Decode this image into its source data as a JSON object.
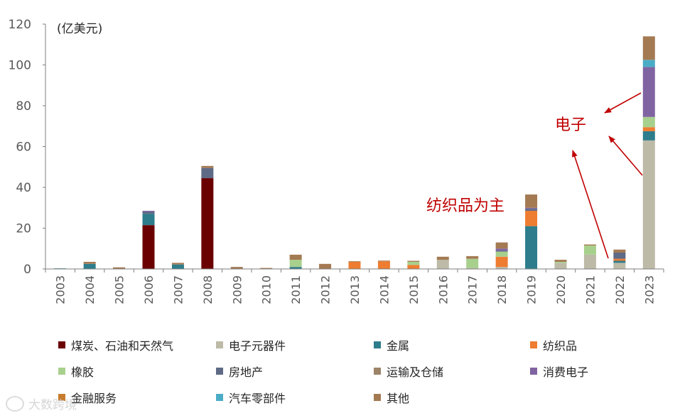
{
  "chart_data": {
    "type": "bar",
    "stacked": true,
    "unit_label": "(亿美元)",
    "ylim": [
      0,
      120
    ],
    "yticks": [
      0,
      20,
      40,
      60,
      80,
      100,
      120
    ],
    "grid": false,
    "legend_position": "bottom",
    "categories": [
      "2003",
      "2004",
      "2005",
      "2006",
      "2007",
      "2008",
      "2009",
      "2010",
      "2011",
      "2012",
      "2013",
      "2014",
      "2015",
      "2016",
      "2017",
      "2018",
      "2019",
      "2020",
      "2021",
      "2022",
      "2023"
    ],
    "series": [
      {
        "name": "煤炭、石油和天然气",
        "color": "#6b0000",
        "values": [
          0,
          0,
          0,
          21.5,
          0,
          44.5,
          0,
          0,
          0,
          0,
          0,
          0,
          0,
          0,
          0,
          0,
          0,
          0,
          0,
          0,
          0
        ]
      },
      {
        "name": "电子元器件",
        "color": "#bdbaa7",
        "values": [
          0,
          0,
          0,
          0,
          0,
          0,
          0,
          0,
          0,
          0,
          0,
          0,
          0,
          4.5,
          0.5,
          1,
          0,
          3,
          7,
          3,
          63
        ]
      },
      {
        "name": "金属",
        "color": "#2e7d8c",
        "values": [
          0.3,
          2.5,
          0,
          5.5,
          2.2,
          0,
          0,
          0,
          1,
          0,
          0,
          0,
          0,
          0,
          0,
          0,
          21,
          0,
          0,
          1,
          4.5
        ]
      },
      {
        "name": "纺织品",
        "color": "#ee7d31",
        "values": [
          0,
          0,
          0,
          0,
          0,
          0,
          0,
          0,
          0,
          0,
          3.5,
          3.8,
          2,
          0,
          0,
          5,
          7.5,
          0,
          0,
          1,
          2
        ]
      },
      {
        "name": "橡胶",
        "color": "#a8d08d",
        "values": [
          0,
          0,
          0,
          0,
          0,
          0,
          0,
          0,
          3.5,
          0,
          0,
          0,
          1.5,
          0,
          4.5,
          2.5,
          0,
          0.5,
          4.5,
          0,
          5
        ]
      },
      {
        "name": "房地产",
        "color": "#5e6a86",
        "values": [
          0,
          0,
          0,
          1,
          0,
          5,
          0,
          0,
          0,
          0,
          0,
          0,
          0,
          0,
          0,
          0.5,
          1,
          0,
          0,
          3,
          0
        ]
      },
      {
        "name": "运输及仓储",
        "color": "#9c8468",
        "values": [
          0,
          0,
          0,
          0,
          0,
          0,
          0,
          0,
          0,
          0,
          0,
          0,
          0,
          0,
          0,
          0,
          0,
          0,
          0,
          0,
          0
        ]
      },
      {
        "name": "消费电子",
        "color": "#8064a2",
        "values": [
          0,
          0,
          0,
          0.5,
          0,
          0,
          0,
          0,
          0,
          0,
          0,
          0,
          0,
          0,
          0,
          1,
          0.5,
          0,
          0,
          0,
          24.5
        ]
      },
      {
        "name": "金融服务",
        "color": "#c77c2c",
        "values": [
          0,
          0,
          0,
          0,
          0,
          0,
          0,
          0,
          0,
          0,
          0,
          0,
          0,
          0,
          0,
          0,
          0,
          0,
          0,
          0,
          0
        ]
      },
      {
        "name": "汽车零部件",
        "color": "#4bacc6",
        "values": [
          0,
          0,
          0,
          0,
          0,
          0,
          0,
          0,
          0,
          0,
          0,
          0,
          0,
          0,
          0,
          0,
          0,
          0,
          0,
          0,
          3.5
        ]
      },
      {
        "name": "其他",
        "color": "#a47a53",
        "values": [
          0,
          1,
          0.8,
          0,
          0.8,
          1,
          1,
          0.5,
          2.5,
          2.5,
          0.3,
          0.3,
          0.5,
          1.5,
          1.3,
          3,
          6.5,
          1,
          0.5,
          1.5,
          11.5
        ]
      }
    ],
    "annotations": [
      {
        "text": "电子",
        "color": "#c00000",
        "target_categories": [
          "2021",
          "2022",
          "2023"
        ]
      },
      {
        "text": "纺织品为主",
        "color": "#c00000",
        "target_categories": [
          "2013",
          "2014",
          "2015"
        ]
      }
    ]
  },
  "watermark": {
    "text": "大数跨境"
  }
}
